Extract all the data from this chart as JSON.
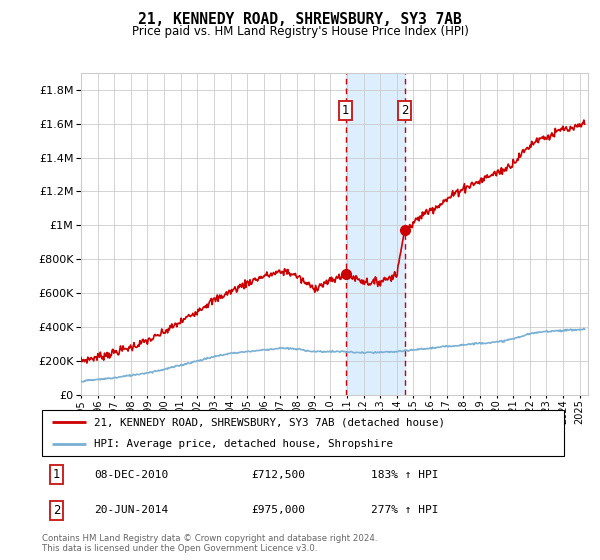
{
  "title": "21, KENNEDY ROAD, SHREWSBURY, SY3 7AB",
  "subtitle": "Price paid vs. HM Land Registry's House Price Index (HPI)",
  "legend_line1": "21, KENNEDY ROAD, SHREWSBURY, SY3 7AB (detached house)",
  "legend_line2": "HPI: Average price, detached house, Shropshire",
  "sale1_date": 2010.92,
  "sale1_price": 712500,
  "sale1_label": "1",
  "sale1_text": "08-DEC-2010",
  "sale1_pct": "183%",
  "sale2_date": 2014.47,
  "sale2_price": 975000,
  "sale2_label": "2",
  "sale2_text": "20-JUN-2014",
  "sale2_pct": "277%",
  "ylim": [
    0,
    1900000
  ],
  "xlim_start": 1995,
  "xlim_end": 2025.5,
  "yticks": [
    0,
    200000,
    400000,
    600000,
    800000,
    1000000,
    1200000,
    1400000,
    1600000,
    1800000
  ],
  "footer": "Contains HM Land Registry data © Crown copyright and database right 2024.\nThis data is licensed under the Open Government Licence v3.0.",
  "red_color": "#cc0000",
  "blue_color": "#7ab0d4",
  "shade_color": "#ddeeff",
  "marker_box_color": "#cc2222",
  "grid_color": "#cccccc",
  "bg_color": "#ffffff"
}
